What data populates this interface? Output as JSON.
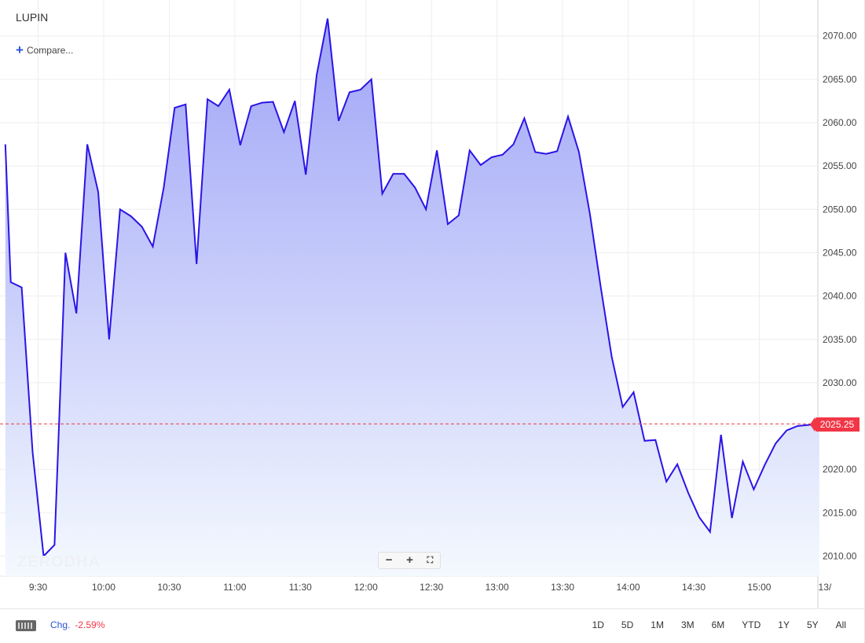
{
  "ticker": "LUPIN",
  "compare_label": "Compare...",
  "watermark": "ZERODHA",
  "zoom": {
    "minus": "−",
    "plus": "+",
    "fit": "⛶"
  },
  "current_price_label": "2025.25",
  "footer": {
    "keyboard_icon": "keyboard-icon",
    "chg_label": "Chg.",
    "chg_value": "-2.59%",
    "ranges": [
      "1D",
      "5D",
      "1M",
      "3M",
      "6M",
      "YTD",
      "1Y",
      "5Y",
      "All"
    ]
  },
  "colors": {
    "line": "#2b14e6",
    "fill_top": "#9fa4f7",
    "fill_bottom": "#f4f9fe",
    "price_line": "#f23645",
    "grid": "#eeeeee"
  },
  "chart_data": {
    "type": "area",
    "title": "LUPIN",
    "y_ticks": [
      "2010.00",
      "2015.00",
      "2020.00",
      "2025.00",
      "2030.00",
      "2035.00",
      "2040.00",
      "2045.00",
      "2050.00",
      "2055.00",
      "2060.00",
      "2065.00",
      "2070.00"
    ],
    "x_ticks": [
      "9:30",
      "10:00",
      "10:30",
      "11:00",
      "11:30",
      "12:00",
      "12:30",
      "13:00",
      "13:30",
      "14:00",
      "14:30",
      "15:00",
      "13/"
    ],
    "ylim": [
      2007.5,
      2073.5
    ],
    "x_unit_note_minutes_from_0915": true,
    "current_price": 2025.25,
    "series": [
      {
        "x": [
          0,
          2.5,
          7.5,
          12.5,
          17.5,
          22.5,
          27.5,
          32.5,
          37.5,
          42.5,
          47.5,
          52.5,
          57.5,
          62.5,
          67.5,
          72.5,
          77.5,
          82.5,
          87.5,
          92.5,
          97.5,
          102.5,
          107.5,
          112.5,
          117.5,
          122.5,
          127.5,
          132.5,
          137.5,
          142.5,
          147.5,
          152.5,
          157.5,
          162.5,
          167.5,
          172.5,
          177.5,
          182.5,
          187.5,
          192.5,
          197.5,
          202.5,
          207.5,
          212.5,
          217.5,
          222.5,
          227.5,
          232.5,
          237.5,
          242.5,
          247.5,
          252.5,
          257.5,
          262.5,
          267.5,
          272.5,
          277.5,
          282.5,
          287.5,
          292.5,
          297.5,
          302.5,
          307.5,
          312.5,
          317.5,
          322.5,
          327.5,
          332.5,
          337.5,
          342.5,
          347.5,
          352.5,
          357.5,
          362.5,
          372.5
        ],
        "values": [
          2057.5,
          2041.6,
          2041.0,
          2022.0,
          2010.0,
          2011.3,
          2045.0,
          2038.0,
          2057.5,
          2052.0,
          2035.0,
          2050.0,
          2049.2,
          2048.0,
          2045.7,
          2052.5,
          2061.7,
          2062.1,
          2043.7,
          2062.7,
          2061.9,
          2063.8,
          2057.4,
          2061.9,
          2062.3,
          2062.4,
          2058.9,
          2062.5,
          2054.0,
          2065.5,
          2072.0,
          2060.2,
          2063.5,
          2063.8,
          2065.0,
          2051.8,
          2054.1,
          2054.1,
          2052.5,
          2050.0,
          2056.8,
          2048.3,
          2049.3,
          2056.8,
          2055.1,
          2056.0,
          2056.3,
          2057.5,
          2060.5,
          2056.6,
          2056.4,
          2056.7,
          2060.7,
          2056.6,
          2049.5,
          2041.0,
          2033.0,
          2027.2,
          2028.9,
          2023.3,
          2023.4,
          2018.6,
          2020.6,
          2017.3,
          2014.5,
          2012.8,
          2024.0,
          2014.4,
          2020.9,
          2017.7,
          2020.5,
          2023.0,
          2024.5,
          2025.0,
          2025.25
        ]
      }
    ]
  }
}
